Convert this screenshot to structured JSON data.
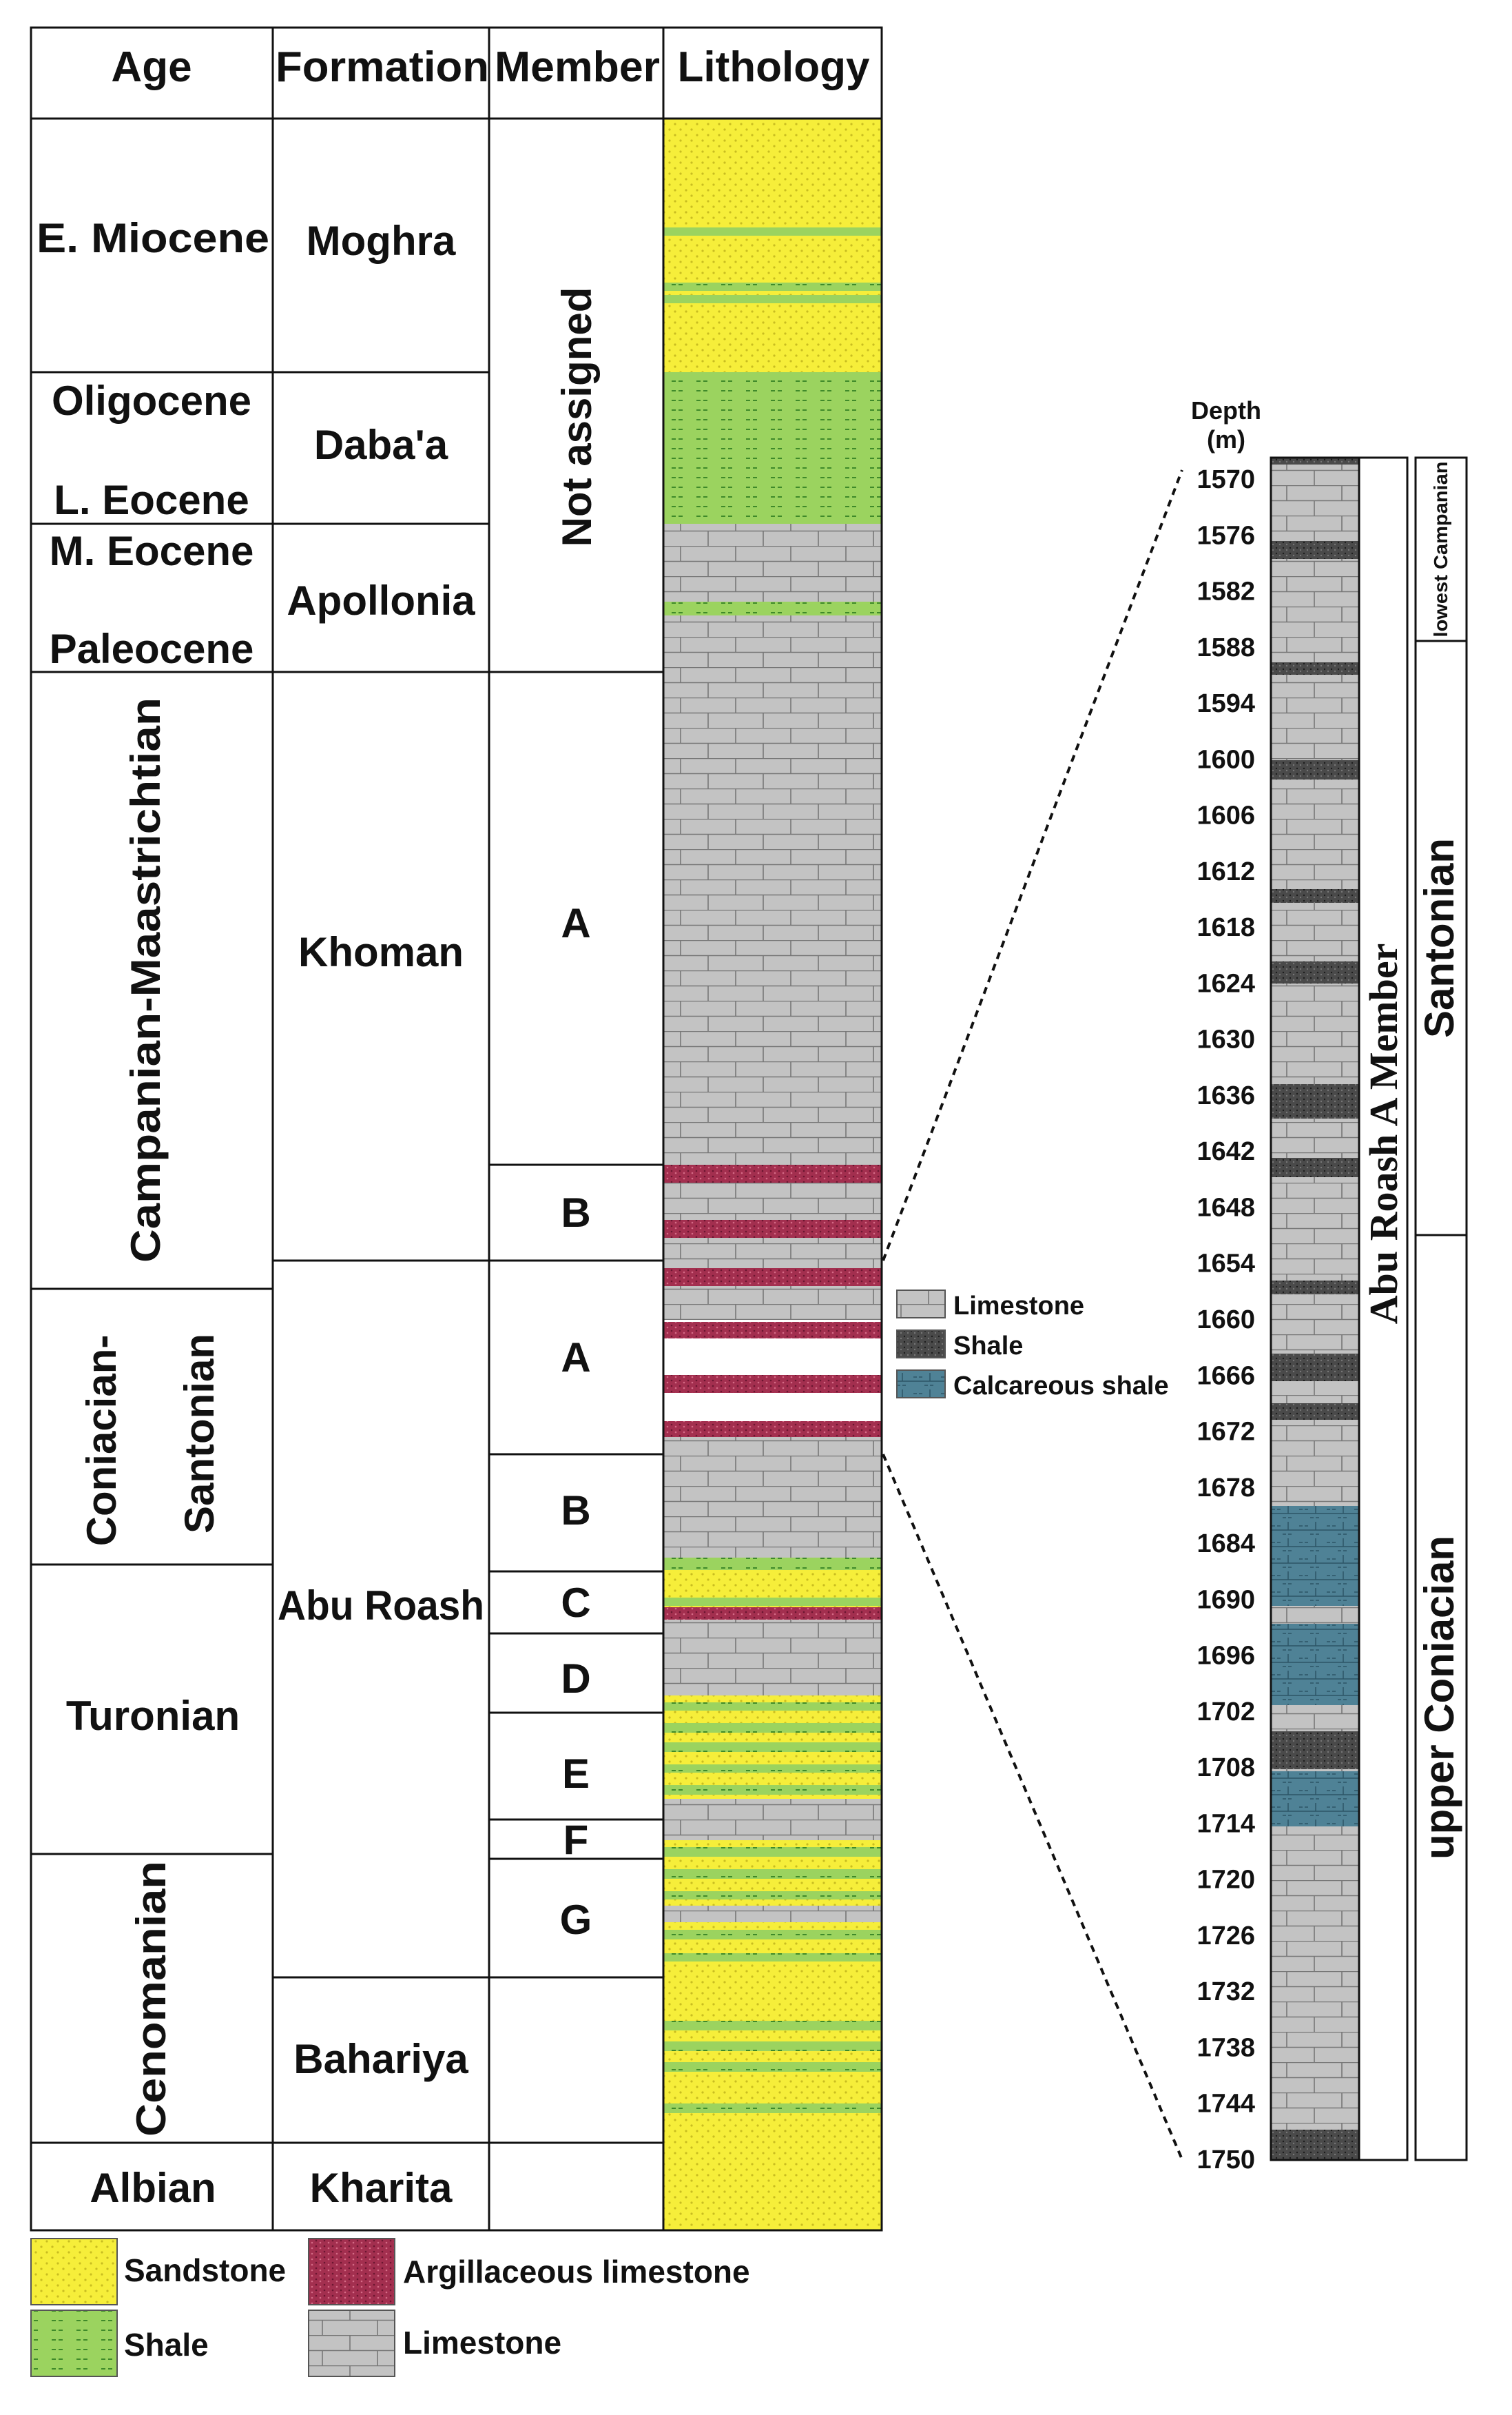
{
  "headers": {
    "age": "Age",
    "formation": "Formation",
    "member": "Member",
    "lithology": "Lithology"
  },
  "ages": {
    "e_miocene": "E. Miocene",
    "oligocene": "Oligocene",
    "l_eocene": "L. Eocene",
    "m_eocene": "M. Eocene",
    "paleocene": "Paleocene",
    "campanian_maastrichtian": "Campanian-Maastrichtian",
    "coniacian": "Coniacian-",
    "santonian": "Santonian",
    "turonian": "Turonian",
    "cenomanian": "Cenomanian",
    "albian": "Albian"
  },
  "formations": {
    "moghra": "Moghra",
    "dabaa": "Daba'a",
    "apollonia": "Apollonia",
    "khoman": "Khoman",
    "abu_roash": "Abu Roash",
    "bahariya": "Bahariya",
    "kharita": "Kharita"
  },
  "members": {
    "not_assigned": "Not assigned",
    "khoman_a": "A",
    "khoman_b": "B",
    "ar_a": "A",
    "ar_b": "B",
    "ar_c": "C",
    "ar_d": "D",
    "ar_e": "E",
    "ar_f": "F",
    "ar_g": "G"
  },
  "legend_main": {
    "sandstone": "Sandstone",
    "shale": "Shale",
    "argillaceous_limestone": "Argillaceous limestone",
    "limestone": "Limestone"
  },
  "legend_detail": {
    "limestone": "Limestone",
    "shale": "Shale",
    "calcareous_shale": "Calcareous shale"
  },
  "colors": {
    "sandstone": "#f6ee3a",
    "shale_green": "#9bd35f",
    "limestone": "#c3c3c3",
    "argillaceous": "#a32f4f",
    "dark_shale": "#4a4a4a",
    "calcareous_shale": "#4f8296"
  },
  "detail": {
    "depth_label_1": "Depth",
    "depth_label_2": "(m)",
    "member_label": "Abu Roash A Member",
    "stage_lowest_campanian": "lowest Campanian",
    "stage_santonian": "Santonian",
    "stage_upper_coniacian": "upper Coniacian",
    "depths": [
      "1570",
      "1576",
      "1582",
      "1588",
      "1594",
      "1600",
      "1606",
      "1612",
      "1618",
      "1624",
      "1630",
      "1636",
      "1642",
      "1648",
      "1654",
      "1660",
      "1666",
      "1672",
      "1678",
      "1684",
      "1690",
      "1696",
      "1702",
      "1708",
      "1714",
      "1720",
      "1726",
      "1732",
      "1738",
      "1744",
      "1750"
    ]
  }
}
